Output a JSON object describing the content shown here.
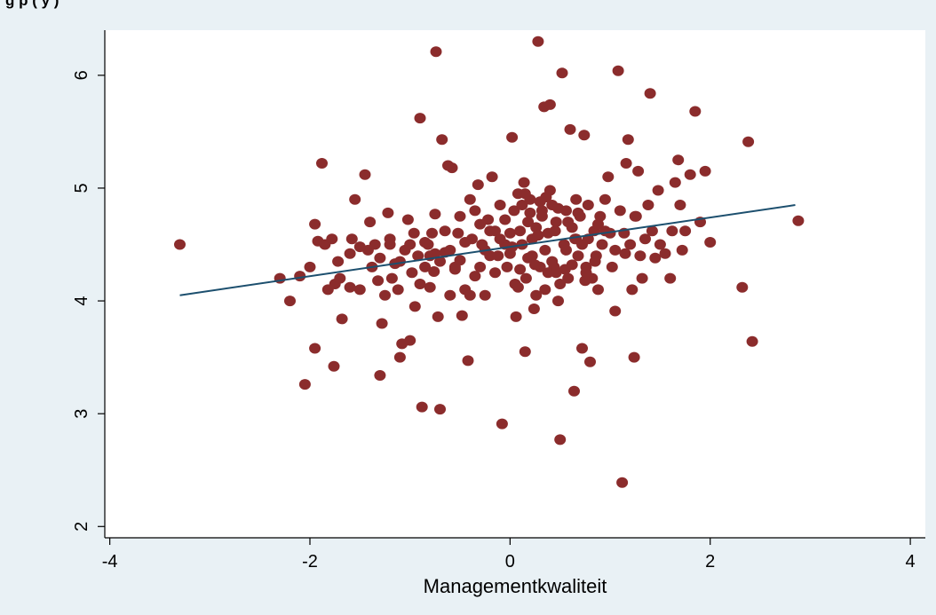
{
  "caption": "g                                                        p                    (              y  )",
  "chart_data": {
    "type": "scatter",
    "title": "",
    "xlabel": "Managementkwaliteit",
    "ylabel": "",
    "xlim": [
      -4.05,
      4.15
    ],
    "ylim": [
      1.9,
      6.4
    ],
    "xticks": [
      -4,
      -2,
      0,
      2,
      4
    ],
    "yticks": [
      2,
      3,
      4,
      5,
      6
    ],
    "grid": false,
    "legend": "none",
    "marker_color": "#8b2c2c",
    "line_color": "#1c4f6e",
    "plot_background": "#ffffff",
    "fit_line": {
      "x": [
        -3.3,
        2.85
      ],
      "y": [
        4.05,
        4.85
      ]
    },
    "points": [
      [
        -3.3,
        4.5
      ],
      [
        -2.3,
        4.2
      ],
      [
        -2.2,
        4.0
      ],
      [
        -2.1,
        4.22
      ],
      [
        -2.05,
        3.26
      ],
      [
        -2.0,
        4.3
      ],
      [
        -1.95,
        4.68
      ],
      [
        -1.95,
        3.58
      ],
      [
        -1.92,
        4.53
      ],
      [
        -1.88,
        5.22
      ],
      [
        -1.85,
        4.5
      ],
      [
        -1.82,
        4.1
      ],
      [
        -1.78,
        4.55
      ],
      [
        -1.76,
        3.42
      ],
      [
        -1.75,
        4.15
      ],
      [
        -1.72,
        4.35
      ],
      [
        -1.7,
        4.2
      ],
      [
        -1.68,
        3.84
      ],
      [
        -1.6,
        4.42
      ],
      [
        -1.58,
        4.55
      ],
      [
        -1.55,
        4.9
      ],
      [
        -1.5,
        4.1
      ],
      [
        -1.45,
        5.12
      ],
      [
        -1.42,
        4.45
      ],
      [
        -1.4,
        4.7
      ],
      [
        -1.38,
        4.3
      ],
      [
        -1.35,
        4.5
      ],
      [
        -1.32,
        4.18
      ],
      [
        -1.3,
        3.34
      ],
      [
        -1.28,
        3.8
      ],
      [
        -1.25,
        4.05
      ],
      [
        -1.22,
        4.78
      ],
      [
        -1.2,
        4.5
      ],
      [
        -1.18,
        4.2
      ],
      [
        -1.15,
        4.33
      ],
      [
        -1.12,
        4.1
      ],
      [
        -1.1,
        3.5
      ],
      [
        -1.08,
        3.62
      ],
      [
        -1.05,
        4.45
      ],
      [
        -1.02,
        4.72
      ],
      [
        -1.0,
        3.65
      ],
      [
        -0.98,
        4.25
      ],
      [
        -0.96,
        4.6
      ],
      [
        -0.95,
        3.95
      ],
      [
        -0.92,
        4.4
      ],
      [
        -0.9,
        5.62
      ],
      [
        -0.88,
        3.06
      ],
      [
        -0.85,
        4.3
      ],
      [
        -0.82,
        4.5
      ],
      [
        -0.8,
        4.12
      ],
      [
        -0.78,
        4.6
      ],
      [
        -0.76,
        4.26
      ],
      [
        -0.75,
        4.77
      ],
      [
        -0.74,
        6.21
      ],
      [
        -0.72,
        3.86
      ],
      [
        -0.7,
        3.04
      ],
      [
        -0.68,
        5.43
      ],
      [
        -0.65,
        4.43
      ],
      [
        -0.62,
        5.2
      ],
      [
        -0.6,
        4.05
      ],
      [
        -0.58,
        5.18
      ],
      [
        -0.55,
        4.3
      ],
      [
        -0.52,
        4.6
      ],
      [
        -0.5,
        4.36
      ],
      [
        -0.48,
        3.87
      ],
      [
        -0.45,
        4.1
      ],
      [
        -0.42,
        3.47
      ],
      [
        -0.4,
        4.9
      ],
      [
        -0.38,
        4.55
      ],
      [
        -0.35,
        4.8
      ],
      [
        -0.32,
        5.03
      ],
      [
        -0.3,
        4.3
      ],
      [
        -0.28,
        4.5
      ],
      [
        -0.25,
        4.05
      ],
      [
        -0.22,
        4.72
      ],
      [
        -0.2,
        4.4
      ],
      [
        -0.18,
        5.1
      ],
      [
        -0.15,
        4.62
      ],
      [
        -0.12,
        4.4
      ],
      [
        -0.1,
        4.85
      ],
      [
        -0.08,
        2.91
      ],
      [
        -0.05,
        4.5
      ],
      [
        -0.03,
        4.3
      ],
      [
        0.0,
        4.6
      ],
      [
        0.02,
        5.45
      ],
      [
        0.04,
        4.8
      ],
      [
        0.06,
        3.86
      ],
      [
        0.08,
        4.95
      ],
      [
        0.1,
        4.28
      ],
      [
        0.12,
        4.5
      ],
      [
        0.14,
        5.05
      ],
      [
        0.15,
        3.55
      ],
      [
        0.16,
        4.2
      ],
      [
        0.18,
        4.7
      ],
      [
        0.2,
        4.9
      ],
      [
        0.22,
        4.4
      ],
      [
        0.24,
        3.93
      ],
      [
        0.26,
        4.65
      ],
      [
        0.28,
        6.3
      ],
      [
        0.3,
        4.3
      ],
      [
        0.32,
        4.8
      ],
      [
        0.34,
        5.72
      ],
      [
        0.35,
        4.1
      ],
      [
        0.38,
        4.6
      ],
      [
        0.4,
        5.74
      ],
      [
        0.42,
        4.85
      ],
      [
        0.44,
        4.3
      ],
      [
        0.46,
        4.7
      ],
      [
        0.48,
        4.0
      ],
      [
        0.5,
        2.77
      ],
      [
        0.52,
        6.02
      ],
      [
        0.54,
        4.5
      ],
      [
        0.56,
        4.8
      ],
      [
        0.58,
        4.2
      ],
      [
        0.6,
        5.52
      ],
      [
        0.62,
        4.65
      ],
      [
        0.64,
        3.2
      ],
      [
        0.66,
        4.9
      ],
      [
        0.68,
        4.4
      ],
      [
        0.7,
        4.75
      ],
      [
        0.72,
        3.58
      ],
      [
        0.74,
        5.47
      ],
      [
        0.76,
        4.3
      ],
      [
        0.78,
        4.55
      ],
      [
        0.8,
        3.46
      ],
      [
        0.82,
        4.2
      ],
      [
        0.84,
        4.62
      ],
      [
        0.86,
        4.4
      ],
      [
        0.88,
        4.1
      ],
      [
        0.9,
        4.75
      ],
      [
        0.92,
        4.5
      ],
      [
        0.95,
        4.9
      ],
      [
        0.98,
        5.1
      ],
      [
        1.0,
        4.6
      ],
      [
        1.02,
        4.3
      ],
      [
        1.05,
        3.91
      ],
      [
        1.08,
        6.04
      ],
      [
        1.1,
        4.8
      ],
      [
        1.12,
        2.39
      ],
      [
        1.14,
        4.6
      ],
      [
        1.16,
        5.22
      ],
      [
        1.18,
        5.43
      ],
      [
        1.2,
        4.5
      ],
      [
        1.22,
        4.1
      ],
      [
        1.24,
        3.5
      ],
      [
        1.26,
        4.75
      ],
      [
        1.28,
        5.15
      ],
      [
        1.3,
        4.4
      ],
      [
        1.32,
        4.2
      ],
      [
        1.35,
        4.55
      ],
      [
        1.38,
        4.85
      ],
      [
        1.4,
        5.84
      ],
      [
        1.42,
        4.62
      ],
      [
        1.45,
        4.38
      ],
      [
        1.48,
        4.98
      ],
      [
        1.5,
        4.5
      ],
      [
        1.55,
        4.42
      ],
      [
        1.6,
        4.2
      ],
      [
        1.62,
        4.62
      ],
      [
        1.65,
        5.05
      ],
      [
        1.68,
        5.25
      ],
      [
        1.7,
        4.85
      ],
      [
        1.72,
        4.45
      ],
      [
        1.75,
        4.62
      ],
      [
        1.8,
        5.12
      ],
      [
        1.85,
        5.68
      ],
      [
        1.9,
        4.7
      ],
      [
        1.95,
        5.15
      ],
      [
        2.0,
        4.52
      ],
      [
        2.32,
        4.12
      ],
      [
        2.38,
        5.41
      ],
      [
        2.42,
        3.64
      ],
      [
        2.88,
        4.71
      ],
      [
        -0.35,
        4.22
      ],
      [
        -0.25,
        4.45
      ],
      [
        -0.15,
        4.25
      ],
      [
        -0.05,
        4.72
      ],
      [
        0.05,
        4.15
      ],
      [
        0.15,
        4.95
      ],
      [
        0.25,
        4.32
      ],
      [
        0.35,
        4.45
      ],
      [
        0.45,
        4.62
      ],
      [
        0.55,
        4.28
      ],
      [
        0.65,
        4.55
      ],
      [
        0.75,
        4.18
      ],
      [
        0.85,
        4.35
      ],
      [
        0.95,
        4.62
      ],
      [
        1.05,
        4.45
      ],
      [
        -0.6,
        4.45
      ],
      [
        -0.7,
        4.35
      ],
      [
        -0.8,
        4.4
      ],
      [
        -0.9,
        4.15
      ],
      [
        -1.0,
        4.5
      ],
      [
        -1.1,
        4.35
      ],
      [
        -1.2,
        4.55
      ],
      [
        -1.3,
        4.38
      ],
      [
        0.1,
        4.62
      ],
      [
        0.2,
        4.78
      ],
      [
        0.3,
        4.88
      ],
      [
        0.4,
        4.98
      ],
      [
        0.0,
        4.42
      ],
      [
        0.12,
        4.85
      ],
      [
        0.22,
        4.55
      ],
      [
        0.32,
        4.75
      ],
      [
        0.42,
        4.35
      ],
      [
        -0.1,
        4.55
      ],
      [
        -0.2,
        4.62
      ],
      [
        -0.4,
        4.05
      ],
      [
        -0.5,
        4.75
      ],
      [
        0.18,
        4.38
      ],
      [
        0.28,
        4.58
      ],
      [
        0.48,
        4.82
      ],
      [
        0.58,
        4.7
      ],
      [
        0.68,
        4.78
      ],
      [
        0.78,
        4.85
      ],
      [
        0.88,
        4.68
      ],
      [
        0.62,
        4.32
      ],
      [
        0.72,
        4.5
      ],
      [
        -0.45,
        4.52
      ],
      [
        -0.55,
        4.28
      ],
      [
        -0.65,
        4.62
      ],
      [
        -0.75,
        4.42
      ],
      [
        -0.85,
        4.52
      ],
      [
        0.08,
        4.12
      ],
      [
        0.38,
        4.25
      ],
      [
        0.5,
        4.15
      ],
      [
        1.25,
        4.75
      ],
      [
        1.15,
        4.42
      ],
      [
        -1.5,
        4.48
      ],
      [
        -1.6,
        4.12
      ],
      [
        -0.3,
        4.68
      ],
      [
        0.02,
        4.48
      ],
      [
        0.26,
        4.05
      ],
      [
        0.36,
        4.92
      ],
      [
        0.46,
        4.25
      ],
      [
        0.56,
        4.45
      ],
      [
        0.66,
        4.55
      ],
      [
        0.76,
        4.25
      ]
    ]
  }
}
